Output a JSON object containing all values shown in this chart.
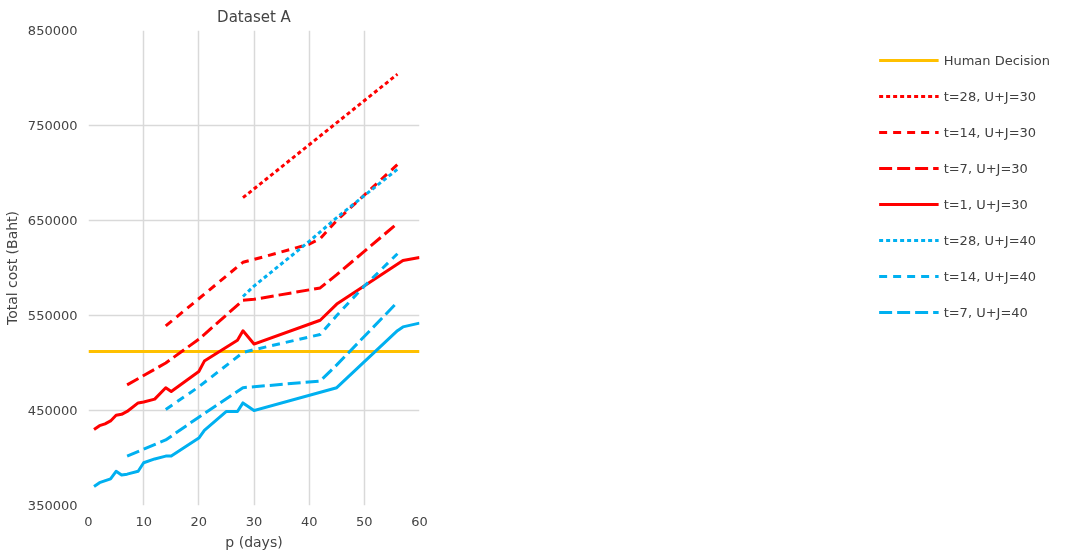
{
  "chart_data": {
    "type": "line",
    "title": "Dataset A",
    "xlabel": "p (days)",
    "ylabel": "Total cost (Baht)",
    "xlim": [
      0,
      60
    ],
    "xticks": [
      0,
      10,
      20,
      30,
      40,
      50,
      60
    ],
    "ylim": [
      350000,
      850000
    ],
    "yticks": [
      350000,
      450000,
      550000,
      650000,
      750000,
      850000
    ],
    "grid": true,
    "legend": "right",
    "marker": "none",
    "series": [
      {
        "name": "Human Decision",
        "color": "#ffc000",
        "line_style": "solid",
        "x": [
          0,
          60
        ],
        "values": [
          512000,
          512000
        ]
      },
      {
        "name": "t=28, U+J=30",
        "color": "#ff0000",
        "line_style": "dotted",
        "x": [
          28,
          42,
          56
        ],
        "values": [
          674000,
          739000,
          804000
        ]
      },
      {
        "name": "t=14, U+J=30",
        "color": "#ff0000",
        "line_style": "dashed",
        "x": [
          14,
          28,
          30,
          40,
          42,
          45,
          56
        ],
        "values": [
          539000,
          606000,
          609000,
          625000,
          631000,
          650000,
          709000
        ]
      },
      {
        "name": "t=7, U+J=30",
        "color": "#ff0000",
        "line_style": "long_dashed",
        "x": [
          7,
          14,
          20,
          28,
          30,
          42,
          45,
          56
        ],
        "values": [
          477000,
          500000,
          525000,
          566000,
          567000,
          579000,
          593000,
          647000
        ]
      },
      {
        "name": "t=1, U+J=30",
        "color": "#ff0000",
        "line_style": "solid",
        "x": [
          1,
          2,
          3,
          4,
          5,
          6,
          7,
          9,
          10,
          12,
          14,
          15,
          20,
          21,
          27,
          28,
          30,
          42,
          45,
          57,
          60
        ],
        "values": [
          430000,
          434000,
          436000,
          439000,
          445000,
          446000,
          449000,
          458000,
          459000,
          462000,
          474000,
          470000,
          491000,
          502000,
          524000,
          534000,
          520000,
          545000,
          562000,
          608000,
          611000
        ]
      },
      {
        "name": "t=28, U+J=40",
        "color": "#00b0f0",
        "line_style": "dotted",
        "x": [
          28,
          30,
          40,
          45,
          56
        ],
        "values": [
          570000,
          581000,
          628000,
          653000,
          704000
        ]
      },
      {
        "name": "t=14, U+J=40",
        "color": "#00b0f0",
        "line_style": "dashed",
        "x": [
          14,
          20,
          28,
          30,
          42,
          45,
          50,
          56
        ],
        "values": [
          451000,
          475000,
          511000,
          514000,
          530000,
          550000,
          581000,
          615000
        ]
      },
      {
        "name": "t=7, U+J=40",
        "color": "#00b0f0",
        "line_style": "long_dashed",
        "x": [
          7,
          14,
          20,
          28,
          30,
          42,
          45,
          56
        ],
        "values": [
          402000,
          419000,
          443000,
          474000,
          475000,
          481000,
          498000,
          564000
        ]
      },
      {
        "color": "#00b0f0",
        "line_style": "solid",
        "x": [
          1,
          2,
          4,
          5,
          6,
          7,
          9,
          10,
          12,
          14,
          15,
          20,
          21,
          25,
          27,
          28,
          30,
          45,
          56,
          57,
          60
        ],
        "values": [
          370000,
          374000,
          378000,
          386000,
          382000,
          383000,
          386000,
          395000,
          399000,
          402000,
          402000,
          421000,
          429000,
          449000,
          449000,
          458000,
          450000,
          474000,
          534000,
          538000,
          542000
        ]
      }
    ]
  }
}
